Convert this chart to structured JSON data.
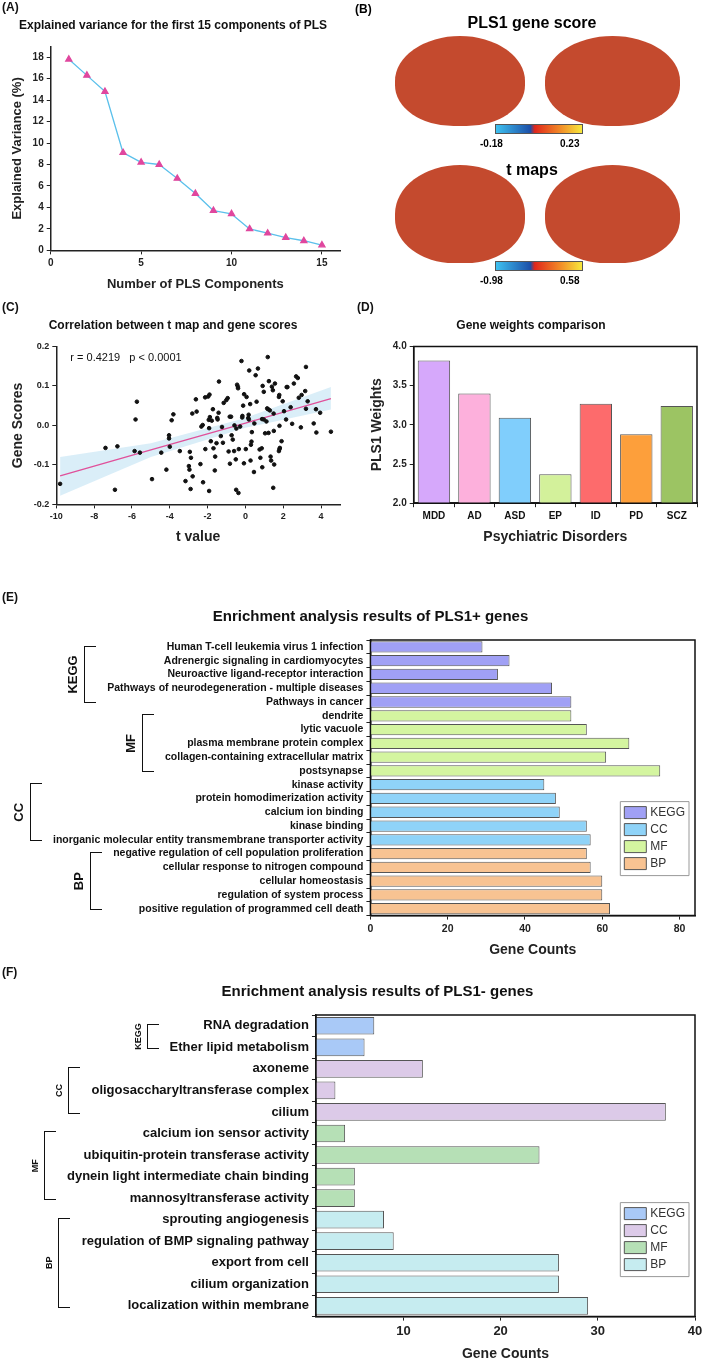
{
  "chart_data": [
    {
      "type": "line",
      "title": "Explained variance for the first 15 components of PLS",
      "xlabel": "Number of PLS Components",
      "ylabel": "Explained Variance (%)",
      "annotations": [
        "(A)"
      ],
      "x": [
        1,
        2,
        3,
        4,
        5,
        6,
        7,
        8,
        9,
        10,
        11,
        12,
        13,
        14,
        15
      ],
      "series": [
        {
          "color": "#5bc0eb",
          "colors": [
            "#e0479e",
            "#e0479e",
            "#e0479e",
            "#e0479e",
            "#e0479e",
            "#e0479e",
            "#e0479e",
            "#e0479e",
            "#e0479e",
            "#e0479e",
            "#e0479e",
            "#e0479e",
            "#e0479e",
            "#e0479e",
            "#e0479e"
          ],
          "values": [
            17.8,
            16.3,
            14.8,
            9.1,
            8.2,
            8.0,
            6.7,
            5.3,
            3.7,
            3.4,
            2.0,
            1.6,
            1.2,
            0.9,
            0.5
          ]
        }
      ],
      "xlim": [
        0,
        16
      ],
      "xticks": [
        0,
        5,
        10,
        15
      ],
      "ylim": [
        0,
        19
      ],
      "yticks": [
        0,
        2,
        4,
        6,
        8,
        10,
        12,
        14,
        16,
        18
      ],
      "grid": false,
      "legend": false,
      "marker": "triangle",
      "line_style": "solid"
    },
    {
      "type": "other",
      "title": "PLS1 gene score",
      "annotations": [
        "(B)",
        "-0.18",
        "0.23"
      ]
    },
    {
      "type": "other",
      "title": "t maps",
      "annotations": [
        "-0.98",
        "0.58"
      ]
    },
    {
      "type": "scatter",
      "title": "Correlation between t map and gene scores",
      "xlabel": "t value",
      "ylabel": "Gene Scores",
      "annotations": [
        "(C)",
        "r = 0.4219   p < 0.0001"
      ],
      "series": [
        {
          "color": "#111111",
          "marker": "circle",
          "x": [
            -9.8,
            -7.4,
            -6.77,
            -6.9,
            -5.74,
            -5.81,
            -5.86,
            -5.58,
            -4.94,
            -4.45,
            -4.18,
            -4.04,
            -4.04,
            -4.0,
            -3.9,
            -3.81,
            -3.47,
            -3.17,
            -2.99,
            -2.96,
            -2.94,
            -2.88,
            -2.9,
            -2.79,
            -2.81,
            -2.62,
            -2.58,
            -2.38,
            -2.33,
            -2.26,
            -2.24,
            -2.12,
            -2.13,
            -1.97,
            -1.94,
            -1.9,
            -1.92,
            -1.88,
            -1.83,
            -1.92,
            -1.78,
            -1.72,
            -1.69,
            -1.62,
            -1.6,
            -1.53,
            -1.49,
            -1.47,
            -1.42,
            -1.4,
            -1.3,
            -1.24,
            -1.19,
            -1.15,
            -1.01,
            -0.94,
            -0.89,
            -0.83,
            -0.76,
            -0.82,
            -0.73,
            -0.67,
            -0.6,
            -0.58,
            -0.51,
            -0.49,
            -0.48,
            -0.44,
            -0.4,
            -0.39,
            -0.37,
            -0.35,
            -0.28,
            -0.21,
            -0.17,
            -0.16,
            -0.12,
            -0.08,
            -0.07,
            0.02,
            0.06,
            0.15,
            0.17,
            0.18,
            0.2,
            0.25,
            0.27,
            0.29,
            0.32,
            0.34,
            0.47,
            0.45,
            0.54,
            0.59,
            0.66,
            0.75,
            0.79,
            0.86,
            0.88,
            0.89,
            0.91,
            0.97,
            0.97,
            1.04,
            1.11,
            1.15,
            1.18,
            1.2,
            1.22,
            1.24,
            1.29,
            1.33,
            1.36,
            1.4,
            1.45,
            1.47,
            1.49,
            1.5,
            1.52,
            1.56,
            1.77,
            1.79,
            1.8,
            1.77,
            1.8,
            1.82,
            1.91,
            1.97,
            2.04,
            2.15,
            2.18,
            2.22,
            2.39,
            2.47,
            2.56,
            2.68,
            2.77,
            2.82,
            2.93,
            2.97,
            3.16,
            3.2,
            3.2,
            3.29,
            3.61,
            3.73,
            3.75,
            3.95,
            4.52
          ],
          "values": [
            -0.148,
            -0.057,
            -0.053,
            -0.163,
            0.06,
            0.015,
            -0.065,
            -0.069,
            -0.136,
            -0.069,
            -0.112,
            -0.025,
            -0.033,
            -0.054,
            0.013,
            0.028,
            -0.065,
            -0.141,
            -0.103,
            -0.112,
            -0.067,
            -0.082,
            -0.161,
            -0.129,
            0.03,
            0.066,
            0.035,
            -0.098,
            -0.003,
            0.001,
            -0.144,
            -0.06,
            0.071,
            0.073,
            0.014,
            0.078,
            -0.007,
            0.021,
            -0.04,
            -0.166,
            0.012,
            0.041,
            -0.058,
            -0.114,
            -0.079,
            -0.045,
            0.019,
            0.015,
            0.032,
            0.111,
            -0.027,
            -0.004,
            -0.044,
            0.057,
            0.064,
            0.069,
            -0.066,
            0.022,
            0.022,
            -0.097,
            -0.025,
            -0.036,
            -0.065,
            0.0,
            -0.086,
            -0.163,
            -0.008,
            0.103,
            0.098,
            0.094,
            -0.171,
            -0.06,
            -0.003,
            0.163,
            0.02,
            0.024,
            0.05,
            -0.096,
            0.079,
            -0.06,
            0.072,
            0.019,
            0.027,
            0.015,
            0.139,
            0.054,
            -0.089,
            -0.049,
            -0.041,
            -0.017,
            0.005,
            -0.118,
            0.127,
            0.06,
            0.144,
            -0.061,
            -0.082,
            -0.058,
            0.016,
            -0.106,
            0.1,
            0.015,
            0.085,
            -0.02,
            0.01,
            0.043,
            0.173,
            0.041,
            -0.019,
            0.112,
            0.038,
            -0.079,
            -0.089,
            0.098,
            0.089,
            -0.158,
            0.03,
            -0.014,
            -0.099,
            0.106,
            0.072,
            0.077,
            -0.001,
            -0.065,
            -0.06,
            -0.057,
            -0.04,
            0.061,
            0.036,
            0.015,
            0.097,
            0.097,
            0.046,
            0.004,
            0.106,
            0.124,
            0.12,
            0.07,
            -0.005,
            0.077,
            0.087,
            0.148,
            0.042,
            0.061,
            0.005,
            0.041,
            -0.018,
            0.032,
            -0.016
          ]
        },
        {
          "type": "line",
          "marker": "none",
          "color": "#e0509a",
          "x": [
            -9.8,
            -5,
            0,
            4.52
          ],
          "values": [
            -0.128,
            -0.062,
            0.006,
            0.068
          ],
          "lower": [
            -0.178,
            -0.08,
            -0.006,
            0.04
          ],
          "upper": [
            -0.08,
            -0.045,
            0.019,
            0.097
          ]
        }
      ],
      "xlim": [
        -10,
        5
      ],
      "xticks": [
        -10,
        -8,
        -6,
        -4,
        -2,
        0,
        2,
        4
      ],
      "ylim": [
        -0.2,
        0.2
      ],
      "yticks": [
        -0.2,
        -0.1,
        {
          "value": 0,
          "label": "0.0"
        },
        0.1,
        0.2
      ],
      "grid": false,
      "legend": false
    },
    {
      "type": "bar",
      "title": "Gene weights comparison",
      "xlabel": "Psychiatric Disorders",
      "ylabel": "PLS1 Weights",
      "annotations": [
        "(D)"
      ],
      "categories": [
        "MDD",
        "AD",
        "ASD",
        "EP",
        "ID",
        "PD",
        "SCZ"
      ],
      "values": [
        3.82,
        3.4,
        3.09,
        2.37,
        3.27,
        2.88,
        3.24
      ],
      "colors": [
        "#d6a8fb",
        "#fdb0dc",
        "#80cefc",
        "#d3f19b",
        "#fd6b6c",
        "#fd9f3b",
        "#9cc463"
      ],
      "ylim": [
        2,
        4
      ],
      "yticks": [
        {
          "value": 2,
          "label": "2.0"
        },
        {
          "value": 2.5,
          "label": "2.5"
        },
        {
          "value": 3,
          "label": "3.0"
        },
        {
          "value": 3.5,
          "label": "3.5"
        },
        {
          "value": 4,
          "label": "4.0"
        }
      ],
      "grid": false,
      "legend": false
    },
    {
      "type": "bar",
      "orientation": "horizontal",
      "title": "Enrichment analysis results of PLS1+ genes",
      "xlabel": "Gene Counts",
      "annotations": [
        "(E)"
      ],
      "categories": [
        "Human T-cell leukemia virus 1 infection",
        "Adrenergic signaling in cardiomyocytes",
        "Neuroactive ligand-receptor interaction",
        "Pathways of neurodegeneration - multiple diseases",
        "Pathways in cancer",
        "dendrite",
        "lytic vacuole",
        "plasma membrane protein complex",
        "collagen-containing extracellular matrix",
        "postsynapse",
        "kinase activity",
        "protein homodimerization activity",
        "calcium ion binding",
        "kinase binding",
        "inorganic molecular entity transmembrane transporter activity",
        "negative regulation of cell population proliferation",
        "cellular response to nitrogen compound",
        "cellular homeostasis",
        "regulation of system process",
        "positive regulation of programmed cell death"
      ],
      "series": [
        {
          "name": "KEGG",
          "color": "#a0a0f5",
          "values": [
            29,
            36,
            33,
            47,
            52,
            null,
            null,
            null,
            null,
            null,
            null,
            null,
            null,
            null,
            null,
            null,
            null,
            null,
            null,
            null
          ]
        },
        {
          "name": "CC",
          "color": "#8fd3f8",
          "values": [
            null,
            null,
            null,
            null,
            null,
            null,
            null,
            null,
            null,
            null,
            45,
            48,
            49,
            56,
            57,
            null,
            null,
            null,
            null,
            null
          ]
        },
        {
          "name": "MF",
          "color": "#d4f5a0",
          "values": [
            null,
            null,
            null,
            null,
            null,
            52,
            56,
            67,
            61,
            75,
            null,
            null,
            null,
            null,
            null,
            null,
            null,
            null,
            null,
            null
          ]
        },
        {
          "name": "BP",
          "color": "#f8c392",
          "values": [
            null,
            null,
            null,
            null,
            null,
            null,
            null,
            null,
            null,
            null,
            null,
            null,
            null,
            null,
            null,
            56,
            57,
            60,
            60,
            62
          ]
        }
      ],
      "xlim": [
        0,
        84
      ],
      "xticks": [
        0,
        20,
        40,
        60,
        80
      ],
      "grid": false,
      "legend": "bottom right"
    },
    {
      "type": "bar",
      "orientation": "horizontal",
      "title": "Enrichment analysis results of PLS1- genes",
      "xlabel": "Gene Counts",
      "annotations": [
        "(F)"
      ],
      "categories": [
        "RNA degradation",
        "Ether lipid metabolism",
        "axoneme",
        "oligosaccharyltransferase complex",
        "cilium",
        "calcium ion sensor activity",
        "ubiquitin-protein transferase activity",
        "dynein light intermediate chain binding",
        "mannosyltransferase activity",
        "sprouting angiogenesis",
        "regulation of BMP signaling pathway",
        "export from cell",
        "cilium organization",
        "localization within membrane"
      ],
      "series": [
        {
          "name": "KEGG",
          "color": "#a9c9f7",
          "values": [
            7,
            6,
            null,
            null,
            null,
            null,
            null,
            null,
            null,
            null,
            null,
            null,
            null,
            null
          ]
        },
        {
          "name": "CC",
          "color": "#dccae8",
          "values": [
            null,
            null,
            12,
            3,
            37,
            null,
            null,
            null,
            null,
            null,
            null,
            null,
            null,
            null
          ]
        },
        {
          "name": "MF",
          "color": "#b6e0b6",
          "values": [
            null,
            null,
            null,
            null,
            null,
            4,
            24,
            5,
            5,
            null,
            null,
            null,
            null,
            null
          ]
        },
        {
          "name": "BP",
          "color": "#c6ecf0",
          "values": [
            null,
            null,
            null,
            null,
            null,
            null,
            null,
            null,
            null,
            8,
            9,
            26,
            26,
            29
          ]
        }
      ],
      "xlim": [
        1,
        40
      ],
      "xticks": [
        10,
        20,
        30,
        40
      ],
      "grid": false,
      "legend": "bottom right"
    }
  ]
}
